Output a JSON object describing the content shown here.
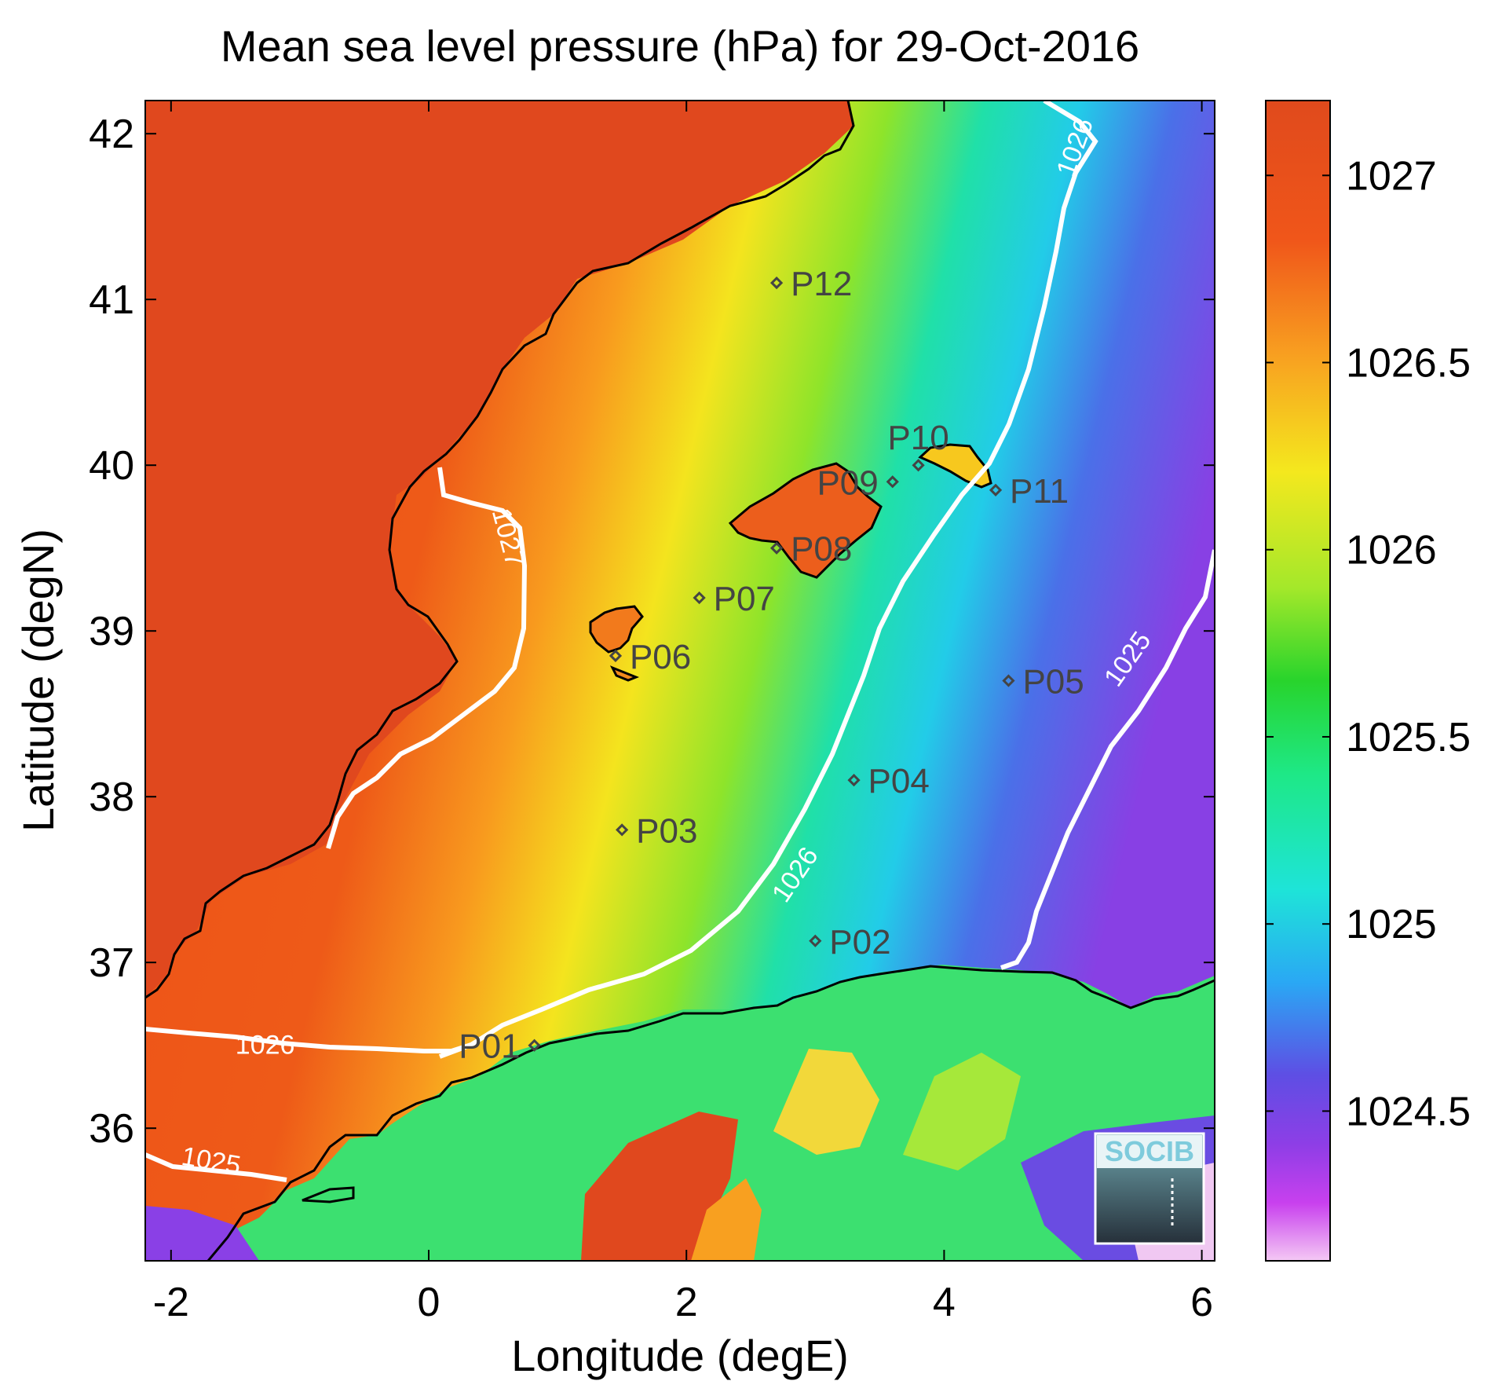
{
  "title": "Mean sea level pressure (hPa) for 29-Oct-2016",
  "axes": {
    "xlabel": "Longitude (degE)",
    "ylabel": "Latitude (degN)",
    "xlim": [
      -2.2,
      6.1
    ],
    "ylim": [
      35.2,
      42.2
    ],
    "xticks": [
      -2,
      0,
      2,
      4,
      6
    ],
    "yticks": [
      36,
      37,
      38,
      39,
      40,
      41,
      42
    ]
  },
  "colorbar": {
    "range": [
      1024.1,
      1027.2
    ],
    "ticks": [
      "1027",
      "1026.5",
      "1026",
      "1025.5",
      "1025",
      "1024.5"
    ],
    "tick_values": [
      1027,
      1026.5,
      1026,
      1025.5,
      1025,
      1024.5
    ]
  },
  "contour_labels": [
    {
      "text": "1027",
      "lon": 0.55,
      "lat": 39.55,
      "angle": 75
    },
    {
      "text": "1026",
      "lon": 5.08,
      "lat": 41.9,
      "angle": -70
    },
    {
      "text": "1026",
      "lon": 2.9,
      "lat": 37.5,
      "angle": -56
    },
    {
      "text": "1026",
      "lon": -1.27,
      "lat": 36.45,
      "angle": 0
    },
    {
      "text": "1025",
      "lon": 5.48,
      "lat": 38.8,
      "angle": -55
    },
    {
      "text": "1025",
      "lon": -1.7,
      "lat": 35.75,
      "angle": 10
    }
  ],
  "points": [
    {
      "label": "P01",
      "lon": 0.82,
      "lat": 36.5,
      "label_side": "left"
    },
    {
      "label": "P02",
      "lon": 3.0,
      "lat": 37.13,
      "label_side": "right"
    },
    {
      "label": "P03",
      "lon": 1.5,
      "lat": 37.8,
      "label_side": "right"
    },
    {
      "label": "P04",
      "lon": 3.3,
      "lat": 38.1,
      "label_side": "right"
    },
    {
      "label": "P05",
      "lon": 4.5,
      "lat": 38.7,
      "label_side": "right"
    },
    {
      "label": "P06",
      "lon": 1.45,
      "lat": 38.85,
      "label_side": "right"
    },
    {
      "label": "P07",
      "lon": 2.1,
      "lat": 39.2,
      "label_side": "right"
    },
    {
      "label": "P08",
      "lon": 2.7,
      "lat": 39.5,
      "label_side": "right"
    },
    {
      "label": "P09",
      "lon": 3.6,
      "lat": 39.9,
      "label_side": "left"
    },
    {
      "label": "P10",
      "lon": 3.8,
      "lat": 40.0,
      "label_side": "above"
    },
    {
      "label": "P11",
      "lon": 4.4,
      "lat": 39.85,
      "label_side": "right"
    },
    {
      "label": "P12",
      "lon": 2.7,
      "lat": 41.1,
      "label_side": "right"
    }
  ],
  "logo": {
    "text": "SOCIB"
  },
  "colors": {
    "map_text": "#000000",
    "point_label": "#444444",
    "contour": "#ffffff",
    "coast": "#000000",
    "logo_text": "#7ecbdc"
  }
}
